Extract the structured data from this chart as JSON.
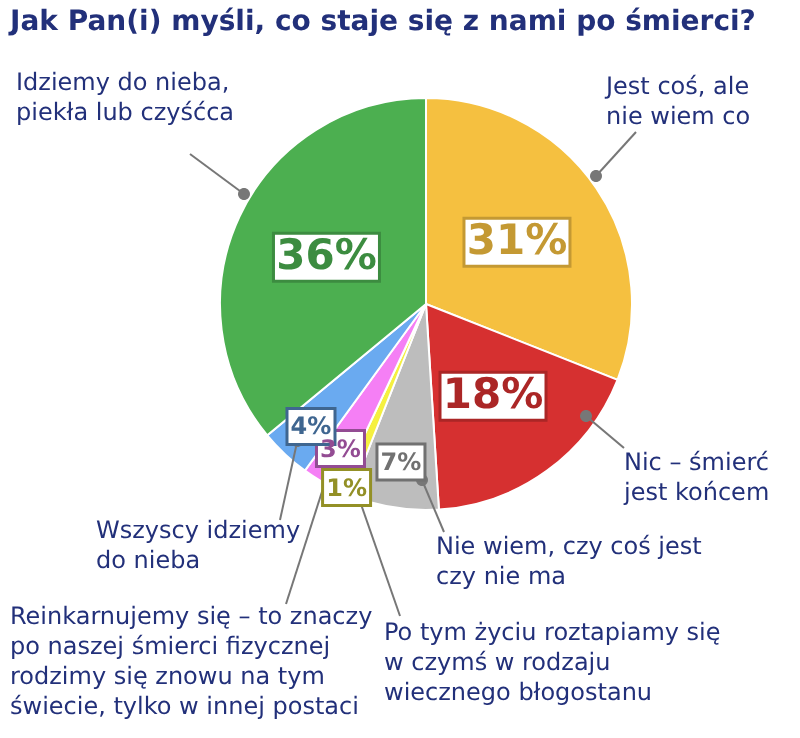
{
  "chart_data": {
    "type": "pie",
    "title": "Jak Pan(i) myśli, co staje się z nami po śmierci?",
    "categories": [
      "Jest coś, ale\nnie wiem co",
      "Nic – śmierć\njest końcem",
      "Nie wiem, czy coś jest\nczy nie ma",
      "Po tym życiu roztapiamy się\nw czymś w rodzaju\nwiecznego błogostanu",
      "Reinkarnujemy się – to znaczy\npo naszej śmierci fizycznej\nrodzimy się znowu na tym\nświecie, tylko w innej postaci",
      "Wszyscy idziemy\ndo nieba",
      "Idziemy do nieba,\npiekła lub czyśćca"
    ],
    "values": [
      31,
      18,
      7,
      1,
      3,
      4,
      36
    ],
    "colors": [
      "#f5c040",
      "#d63030",
      "#bdbdbd",
      "#f5f040",
      "#f57ff5",
      "#6aaaf0",
      "#4caf50"
    ],
    "value_labels": [
      "31%",
      "18%",
      "7%",
      "1%",
      "3%",
      "4%",
      "36%"
    ]
  }
}
